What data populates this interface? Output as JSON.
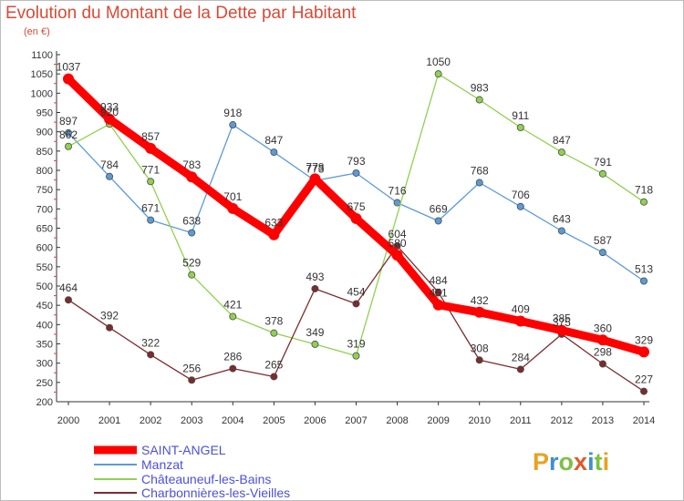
{
  "header": {
    "title": "Evolution du Montant de la Dette par Habitant",
    "subtitle": "(en €)"
  },
  "brand": {
    "letters": [
      {
        "char": "P",
        "color": "#e8a21f"
      },
      {
        "char": "r",
        "color": "#3e8fd0"
      },
      {
        "char": "o",
        "color": "#7cc243"
      },
      {
        "char": "x",
        "color": "#e05a2a"
      },
      {
        "char": "i",
        "color": "#3e8fd0"
      },
      {
        "char": "t",
        "color": "#7cc243"
      },
      {
        "char": "i",
        "color": "#e8a21f"
      }
    ]
  },
  "chart_data": {
    "type": "line",
    "title": "Evolution du Montant de la Dette par Habitant",
    "subtitle": "(en €)",
    "x": [
      "2000",
      "2001",
      "2002",
      "2003",
      "2004",
      "2005",
      "2006",
      "2007",
      "2008",
      "2009",
      "2010",
      "2011",
      "2012",
      "2013",
      "2014"
    ],
    "y_ticks": [
      "200",
      "250",
      "300",
      "350",
      "400",
      "450",
      "500",
      "550",
      "600",
      "650",
      "700",
      "750",
      "800",
      "850",
      "900",
      "950",
      "1000",
      "1050",
      "1100"
    ],
    "ylim": [
      200,
      1100
    ],
    "grid": false,
    "legend_position": "bottom-left",
    "series": [
      {
        "name": "SAINT-ANGEL",
        "color": "#ff0000",
        "highlight": true,
        "values": [
          1037,
          933,
          857,
          783,
          701,
          633,
          778,
          675,
          580,
          451,
          432,
          409,
          385,
          360,
          329
        ],
        "labels": [
          "1037",
          "933",
          "857",
          "783",
          "701",
          "633",
          "778",
          "675",
          "580",
          "451",
          "432",
          "409",
          "385",
          "360",
          "329"
        ]
      },
      {
        "name": "Manzat",
        "color": "#5b9bd5",
        "highlight": false,
        "values": [
          897,
          784,
          671,
          638,
          918,
          847,
          773,
          793,
          716,
          669,
          768,
          706,
          643,
          587,
          513
        ],
        "labels": [
          "897",
          "784",
          "671",
          "638",
          "918",
          "847",
          "773",
          "793",
          "716",
          "669",
          "768",
          "706",
          "643",
          "587",
          "513"
        ]
      },
      {
        "name": "Châteauneuf-les-Bains",
        "color": "#92d050",
        "highlight": false,
        "values": [
          862,
          920,
          771,
          529,
          421,
          378,
          349,
          319,
          null,
          1050,
          983,
          911,
          847,
          791,
          718
        ],
        "labels": [
          "862",
          "920",
          "771",
          "529",
          "421",
          "378",
          "349",
          "319",
          "",
          "1050",
          "983",
          "911",
          "847",
          "791",
          "718"
        ]
      },
      {
        "name": "Charbonnières-les-Vieilles",
        "color": "#7b2c2c",
        "highlight": false,
        "values": [
          464,
          392,
          322,
          256,
          286,
          265,
          493,
          454,
          604,
          484,
          308,
          284,
          375,
          298,
          227
        ],
        "labels": [
          "464",
          "392",
          "322",
          "256",
          "286",
          "265",
          "493",
          "454",
          "604",
          "484",
          "308",
          "284",
          "375",
          "298",
          "227"
        ]
      }
    ]
  }
}
